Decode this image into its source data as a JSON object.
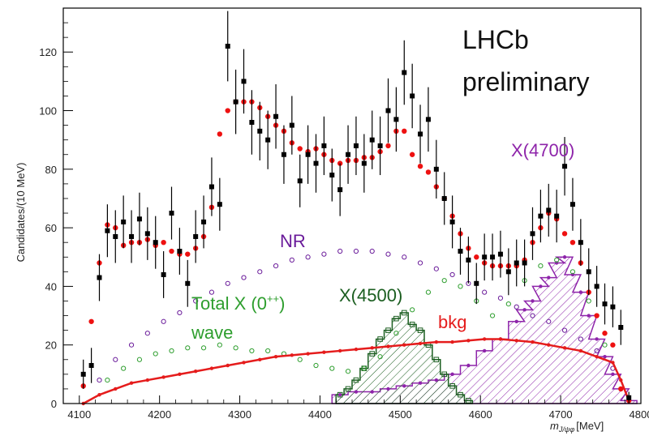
{
  "chart_data": {
    "type": "scatter",
    "title": "",
    "experiment_label": "LHCb",
    "status_label": "preliminary",
    "ylabel": "Candidates/(10 MeV)",
    "xlabel_symbol": "m",
    "xlabel_subscript": "J/ψφ",
    "xlabel_unit": "[MeV]",
    "xlim": [
      4080,
      4800
    ],
    "ylim": [
      0,
      135
    ],
    "x_ticks": [
      4100,
      4200,
      4300,
      4400,
      4500,
      4600,
      4700,
      4800
    ],
    "y_ticks": [
      0,
      20,
      40,
      60,
      80,
      100,
      120
    ],
    "grid": false,
    "colors": {
      "data": "#000000",
      "fit": "#ee1111",
      "nr": "#6a1b9a",
      "total_x0": "#2e9e2e",
      "x4500": "#1b5e20",
      "x4700": "#8e24aa",
      "bkg": "#e51c1c"
    },
    "annotations": {
      "nr": "NR",
      "total_x0_line1": "Total X (0",
      "total_x0_sup": "++",
      "total_x0_close": ")",
      "total_x0_line2": "wave",
      "x4500": "X(4500)",
      "x4700": "X(4700)",
      "bkg": "bkg"
    },
    "series": [
      {
        "role": "data",
        "x": [
          4105,
          4115,
          4125,
          4135,
          4145,
          4155,
          4165,
          4175,
          4185,
          4195,
          4205,
          4215,
          4225,
          4235,
          4245,
          4255,
          4265,
          4275,
          4285,
          4295,
          4305,
          4315,
          4325,
          4335,
          4345,
          4355,
          4365,
          4375,
          4385,
          4395,
          4405,
          4415,
          4425,
          4435,
          4445,
          4455,
          4465,
          4475,
          4485,
          4495,
          4505,
          4515,
          4525,
          4535,
          4545,
          4555,
          4565,
          4575,
          4585,
          4595,
          4605,
          4615,
          4625,
          4635,
          4645,
          4655,
          4665,
          4675,
          4685,
          4695,
          4705,
          4715,
          4725,
          4735,
          4745,
          4755,
          4765,
          4775,
          4785
        ],
        "y": [
          10,
          13,
          43,
          59,
          57,
          62,
          57,
          63,
          58,
          55,
          44,
          65,
          52,
          41,
          57,
          62,
          74,
          68,
          122,
          103,
          110,
          96,
          93,
          90,
          98,
          85,
          95,
          76,
          85,
          82,
          88,
          78,
          73,
          85,
          88,
          82,
          90,
          88,
          100,
          97,
          113,
          105,
          92,
          97,
          80,
          70,
          62,
          52,
          49,
          41,
          50,
          50,
          51,
          45,
          48,
          48,
          58,
          64,
          66,
          64,
          81,
          68,
          55,
          45,
          40,
          34,
          33,
          26,
          2
        ],
        "err": [
          5,
          6,
          8,
          9,
          9,
          9,
          9,
          9,
          9,
          9,
          8,
          9,
          8,
          8,
          9,
          9,
          10,
          9,
          12,
          11,
          11,
          11,
          10,
          10,
          11,
          10,
          10,
          9,
          10,
          10,
          10,
          9,
          9,
          10,
          10,
          10,
          10,
          10,
          11,
          11,
          11,
          11,
          10,
          11,
          10,
          9,
          9,
          8,
          8,
          7,
          8,
          8,
          8,
          8,
          8,
          8,
          9,
          9,
          9,
          9,
          10,
          9,
          8,
          8,
          7,
          7,
          7,
          6,
          2
        ]
      },
      {
        "role": "fit",
        "x": [
          4105,
          4115,
          4125,
          4135,
          4145,
          4155,
          4165,
          4175,
          4185,
          4195,
          4205,
          4215,
          4225,
          4235,
          4245,
          4255,
          4265,
          4275,
          4285,
          4295,
          4305,
          4315,
          4325,
          4335,
          4345,
          4355,
          4365,
          4375,
          4385,
          4395,
          4405,
          4415,
          4425,
          4435,
          4445,
          4455,
          4465,
          4475,
          4485,
          4495,
          4505,
          4515,
          4525,
          4535,
          4545,
          4555,
          4565,
          4575,
          4585,
          4595,
          4605,
          4615,
          4625,
          4635,
          4645,
          4655,
          4665,
          4675,
          4685,
          4695,
          4705,
          4715,
          4725,
          4735,
          4745,
          4755,
          4765,
          4775,
          4785
        ],
        "y": [
          6,
          28,
          48,
          61,
          60,
          54,
          55,
          55,
          56,
          54,
          55,
          52,
          51,
          51,
          53,
          57,
          67,
          92,
          100,
          103,
          103,
          103,
          101,
          98,
          95,
          93,
          89,
          87,
          86,
          87,
          85,
          83,
          82,
          83,
          83,
          84,
          84,
          86,
          88,
          93,
          93,
          85,
          81,
          79,
          74,
          70,
          64,
          58,
          53,
          50,
          48,
          47,
          47,
          47,
          47,
          49,
          55,
          60,
          65,
          63,
          58,
          55,
          48,
          38,
          30,
          24,
          20,
          5,
          1
        ]
      },
      {
        "role": "nr",
        "x": [
          4125,
          4145,
          4165,
          4185,
          4205,
          4225,
          4245,
          4265,
          4285,
          4305,
          4325,
          4345,
          4365,
          4385,
          4405,
          4425,
          4445,
          4465,
          4485,
          4505,
          4525,
          4545,
          4565,
          4585,
          4605,
          4625,
          4645,
          4665,
          4685,
          4705,
          4725,
          4745,
          4765
        ],
        "y": [
          8,
          15,
          20,
          24,
          28,
          31,
          35,
          38,
          41,
          43,
          45,
          47,
          49,
          50,
          51,
          52,
          52,
          52,
          51,
          50,
          48,
          46,
          44,
          41,
          38,
          36,
          33,
          30,
          28,
          25,
          22,
          18,
          12
        ]
      },
      {
        "role": "total_x0",
        "x": [
          4135,
          4155,
          4175,
          4195,
          4215,
          4235,
          4255,
          4275,
          4295,
          4315,
          4335,
          4355,
          4375,
          4395,
          4415,
          4435,
          4455,
          4475,
          4495,
          4515,
          4535,
          4555,
          4575,
          4595,
          4615,
          4635,
          4655,
          4675,
          4695,
          4715,
          4735,
          4755
        ],
        "y": [
          8,
          12,
          15,
          17,
          18,
          19,
          19,
          20,
          19,
          18,
          18,
          17,
          15,
          13,
          12,
          11,
          12,
          16,
          24,
          32,
          38,
          42,
          40,
          35,
          30,
          34,
          42,
          47,
          49,
          45,
          35,
          20
        ]
      },
      {
        "role": "x4500",
        "x": [
          4425,
          4435,
          4445,
          4455,
          4465,
          4475,
          4485,
          4495,
          4505,
          4515,
          4525,
          4535,
          4545,
          4555,
          4565,
          4575,
          4585
        ],
        "y": [
          3,
          5,
          8,
          12,
          17,
          22,
          25,
          29,
          31,
          27,
          25,
          20,
          15,
          10,
          6,
          3,
          1
        ]
      },
      {
        "role": "x4700",
        "x": [
          4425,
          4445,
          4465,
          4485,
          4505,
          4525,
          4545,
          4565,
          4585,
          4605,
          4625,
          4645,
          4655,
          4665,
          4675,
          4685,
          4695,
          4705,
          4715,
          4725,
          4735,
          4745,
          4755,
          4765,
          4775,
          4785
        ],
        "y": [
          3,
          4,
          4,
          5,
          6,
          7,
          8,
          10,
          13,
          18,
          22,
          28,
          32,
          35,
          40,
          43,
          48,
          50,
          44,
          38,
          30,
          22,
          16,
          10,
          5,
          1
        ]
      },
      {
        "role": "bkg",
        "x": [
          4105,
          4125,
          4145,
          4165,
          4185,
          4205,
          4225,
          4245,
          4265,
          4285,
          4305,
          4325,
          4345,
          4365,
          4385,
          4405,
          4425,
          4445,
          4465,
          4485,
          4505,
          4525,
          4545,
          4565,
          4585,
          4605,
          4625,
          4645,
          4665,
          4685,
          4705,
          4725,
          4745,
          4765,
          4775,
          4785
        ],
        "y": [
          0,
          3,
          5,
          7,
          8,
          9,
          10,
          11,
          12,
          13,
          14,
          15,
          16,
          16.5,
          17,
          17.5,
          18,
          18.5,
          19,
          19.5,
          20,
          20.5,
          21,
          21,
          21.5,
          22,
          22,
          21.5,
          21,
          20,
          19,
          18,
          16,
          14,
          8,
          1
        ]
      }
    ]
  }
}
